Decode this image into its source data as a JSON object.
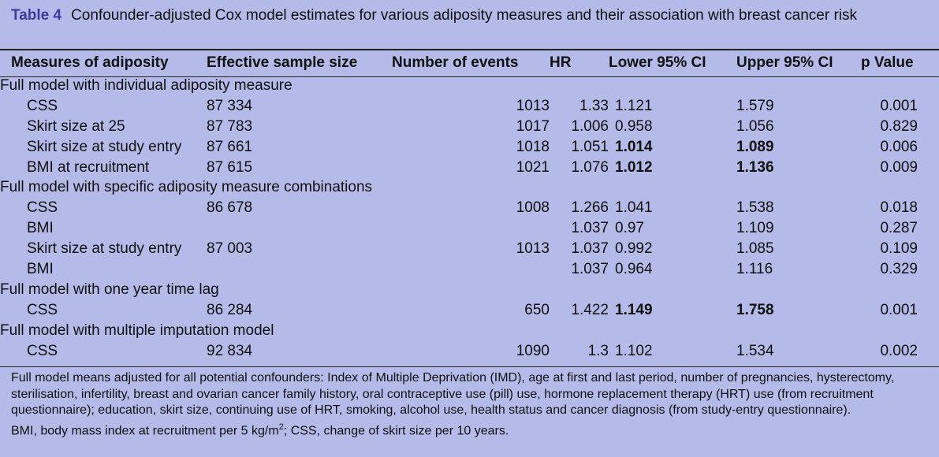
{
  "caption": {
    "label": "Table 4",
    "text": "Confounder-adjusted Cox model estimates for various adiposity measures and their association with breast cancer risk"
  },
  "headers": [
    "Measures of adiposity",
    "Effective sample size",
    "Number of events",
    "HR",
    "Lower 95% CI",
    "Upper 95% CI",
    "p Value"
  ],
  "sections": [
    {
      "title": "Full model with individual adiposity measure",
      "rows": [
        {
          "measure": "CSS",
          "n": "87 334",
          "events": "1013",
          "hr": "1.33",
          "lower": "1.121",
          "upper": "1.579",
          "p": "0.001",
          "lower_bold": false,
          "upper_bold": false
        },
        {
          "measure": "Skirt size at 25",
          "n": "87 783",
          "events": "1017",
          "hr": "1.006",
          "lower": "0.958",
          "upper": "1.056",
          "p": "0.829",
          "lower_bold": false,
          "upper_bold": false
        },
        {
          "measure": "Skirt size at study entry",
          "n": "87 661",
          "events": "1018",
          "hr": "1.051",
          "lower": "1.014",
          "upper": "1.089",
          "p": "0.006",
          "lower_bold": true,
          "upper_bold": true
        },
        {
          "measure": "BMI at recruitment",
          "n": "87 615",
          "events": "1021",
          "hr": "1.076",
          "lower": "1.012",
          "upper": "1.136",
          "p": "0.009",
          "lower_bold": true,
          "upper_bold": true
        }
      ]
    },
    {
      "title": "Full model with specific adiposity measure combinations",
      "rows": [
        {
          "measure": "CSS",
          "n": "86 678",
          "events": "1008",
          "hr": "1.266",
          "lower": "1.041",
          "upper": "1.538",
          "p": "0.018",
          "lower_bold": false,
          "upper_bold": false
        },
        {
          "measure": "BMI",
          "n": "",
          "events": "",
          "hr": "1.037",
          "lower": "0.97",
          "upper": "1.109",
          "p": "0.287",
          "lower_bold": false,
          "upper_bold": false
        },
        {
          "measure": "Skirt size at study entry",
          "n": "87 003",
          "events": "1013",
          "hr": "1.037",
          "lower": "0.992",
          "upper": "1.085",
          "p": "0.109",
          "lower_bold": false,
          "upper_bold": false
        },
        {
          "measure": "BMI",
          "n": "",
          "events": "",
          "hr": "1.037",
          "lower": "0.964",
          "upper": "1.116",
          "p": "0.329",
          "lower_bold": false,
          "upper_bold": false
        }
      ]
    },
    {
      "title": "Full model with one year time lag",
      "rows": [
        {
          "measure": "CSS",
          "n": "86 284",
          "events": "650",
          "hr": "1.422",
          "lower": "1.149",
          "upper": "1.758",
          "p": "0.001",
          "lower_bold": true,
          "upper_bold": true
        }
      ]
    },
    {
      "title": "Full model with multiple imputation model",
      "rows": [
        {
          "measure": "CSS",
          "n": "92 834",
          "events": "1090",
          "hr": "1.3",
          "lower": "1.102",
          "upper": "1.534",
          "p": "0.002",
          "lower_bold": false,
          "upper_bold": false
        }
      ]
    }
  ],
  "footnotes": {
    "note1": "Full model means adjusted for all potential confounders: Index of Multiple Deprivation (IMD), age at first and last period, number of pregnancies, hysterectomy, sterilisation, infertility, breast and ovarian cancer family history, oral contraceptive use (pill) use, hormone replacement therapy (HRT) use (from recruitment questionnaire); education, skirt size, continuing use of HRT, smoking, alcohol use, health status and cancer diagnosis (from study-entry questionnaire).",
    "note2_pre": "BMI, body mass index at recruitment per 5 kg/m",
    "note2_sup": "2",
    "note2_post": "; CSS, change of skirt size per 10 years."
  }
}
